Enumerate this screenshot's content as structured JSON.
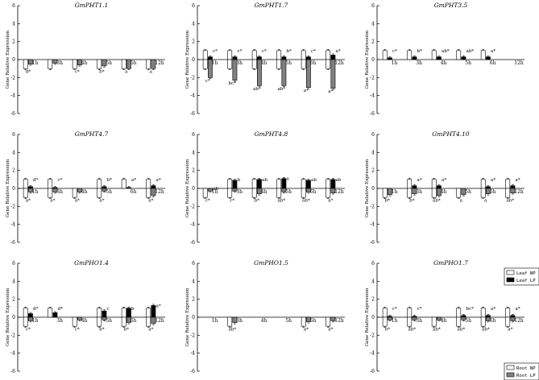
{
  "chart_data": {
    "type": "bar",
    "ylabel": "Gene Relative Expression",
    "ylim": [
      -6,
      6
    ],
    "yticks": [
      "6",
      "4",
      "2",
      "0",
      "-2",
      "-4",
      "-6"
    ],
    "categories": [
      "1h",
      "3h",
      "4h",
      "5h",
      "6h",
      "12h"
    ],
    "series_names": [
      "Leaf NP",
      "Leaf LP",
      "Root NP",
      "Root LP"
    ],
    "colors": {
      "leaf_np": "#ffffff",
      "leaf_lp": "#000000",
      "root_np": "#ffffff",
      "root_lp": "#808080"
    },
    "legend_upper": [
      "Leaf NP",
      "Leaf LP"
    ],
    "legend_lower": [
      "Root NP",
      "Root LP"
    ],
    "panels": [
      {
        "title": "GmPHT1.1",
        "leaf_np": [
          0,
          0,
          0,
          0,
          0,
          0
        ],
        "leaf_lp": [
          0,
          0,
          0,
          0,
          0,
          0
        ],
        "root_np": [
          -1.0,
          -1.0,
          -1.0,
          -1.0,
          -1.0,
          -1.0
        ],
        "root_lp": [
          -0.5,
          -0.4,
          -0.6,
          -0.7,
          -1.0,
          -1.0
        ],
        "sig_top": [
          "",
          "",
          "",
          "",
          "",
          ""
        ],
        "sig_bot": [
          "d*",
          "",
          "c*",
          "b*",
          "a",
          "a"
        ]
      },
      {
        "title": "GmPHT1.7",
        "leaf_np": [
          1.0,
          1.0,
          1.0,
          1.0,
          1.0,
          1.0
        ],
        "leaf_lp": [
          0.3,
          0.3,
          0.3,
          0.3,
          0.3,
          0.5
        ],
        "root_np": [
          -1.0,
          -1.0,
          -1.0,
          -1.0,
          -1.0,
          -1.0
        ],
        "root_lp": [
          -2.0,
          -2.3,
          -2.9,
          -2.9,
          -3.1,
          -3.2
        ],
        "sig_top": [
          "c*",
          "c*",
          "c*",
          "b*",
          "c*",
          "a*"
        ],
        "sig_bot": [
          "c*",
          "bc*",
          "ab*",
          "ab*",
          "a*",
          "a*"
        ]
      },
      {
        "title": "GmPHT3.5",
        "leaf_np": [
          1.0,
          1.0,
          1.0,
          1.0,
          1.0,
          0
        ],
        "leaf_lp": [
          0.2,
          0.3,
          0.3,
          0.3,
          0.3,
          0
        ],
        "root_np": [
          0,
          0,
          0,
          0,
          0,
          0
        ],
        "root_lp": [
          0,
          0,
          0,
          0,
          0,
          0
        ],
        "sig_top": [
          "c*",
          "b*",
          "ab*",
          "ab*",
          "a*",
          ""
        ],
        "sig_bot": [
          "",
          "",
          "",
          "",
          "",
          ""
        ]
      },
      {
        "title": "GmPHT4.7",
        "leaf_np": [
          1.0,
          1.0,
          0,
          1.0,
          1.0,
          1.0
        ],
        "leaf_lp": [
          0.2,
          0.1,
          0,
          0.2,
          0.1,
          0.3
        ],
        "root_np": [
          -1.0,
          -1.0,
          -1.0,
          -1.0,
          0,
          -1.0
        ],
        "root_lp": [
          -0.4,
          -0.4,
          -0.4,
          -0.3,
          0,
          -0.8
        ],
        "sig_top": [
          "d*",
          "c*",
          "",
          "b*",
          "a*",
          "a*"
        ],
        "sig_bot": [
          "a*",
          "a*",
          "a*",
          "a*",
          "",
          "a*"
        ]
      },
      {
        "title": "GmPHT4.8",
        "leaf_np": [
          0,
          1.0,
          1.0,
          1.0,
          1.0,
          1.0
        ],
        "leaf_lp": [
          0,
          0.9,
          1.0,
          1.1,
          0.9,
          1.0
        ],
        "root_np": [
          -1.0,
          -1.0,
          -1.0,
          -1.0,
          -1.0,
          -1.0
        ],
        "root_lp": [
          -0.3,
          -0.3,
          -0.6,
          -0.4,
          -0.4,
          -0.5
        ],
        "sig_top": [
          "ab",
          "b",
          "ab",
          "a",
          "ab",
          "ab"
        ],
        "sig_bot": [
          "c*",
          "c*",
          "b*",
          "ab*",
          "ab*",
          "a*"
        ]
      },
      {
        "title": "GmPHT4.10",
        "leaf_np": [
          0,
          1.0,
          1.0,
          0,
          1.0,
          1.0
        ],
        "leaf_lp": [
          0,
          0.3,
          0.3,
          0,
          0.2,
          0.3
        ],
        "root_np": [
          -1.0,
          -1.0,
          -1.0,
          -1.0,
          -1.0,
          -1.0
        ],
        "root_lp": [
          -0.7,
          -0.6,
          -0.8,
          -0.7,
          -0.6,
          -0.5
        ],
        "sig_top": [
          "",
          "a*",
          "a*",
          "",
          "a*",
          "a*"
        ],
        "sig_bot": [
          "b*",
          "b*",
          "ab*",
          "a",
          "a",
          "ab*"
        ]
      },
      {
        "title": "GmPHO1.4",
        "leaf_np": [
          1.0,
          1.0,
          0,
          1.0,
          1.0,
          1.0
        ],
        "leaf_lp": [
          0.4,
          0.5,
          0,
          0.7,
          1.0,
          1.3
        ],
        "root_np": [
          -1.0,
          0,
          -1.0,
          -1.0,
          -1.0,
          -1.0
        ],
        "root_lp": [
          -0.4,
          0,
          -0.3,
          -0.3,
          -0.6,
          -0.7
        ],
        "sig_top": [
          "d*",
          "d*",
          "",
          "c",
          "b",
          "a*"
        ],
        "sig_bot": [
          "c*",
          "",
          "c*",
          "b*",
          "b*",
          "a*"
        ]
      },
      {
        "title": "GmPHO1.5",
        "leaf_np": [
          0,
          0,
          0,
          0,
          0,
          0
        ],
        "leaf_lp": [
          0,
          0,
          0,
          0,
          0,
          0
        ],
        "root_np": [
          0,
          -1.0,
          0,
          0,
          -1.0,
          -1.0
        ],
        "root_lp": [
          0,
          -0.6,
          0,
          0,
          -0.5,
          -0.4
        ],
        "sig_top": [
          "",
          "",
          "",
          "",
          "",
          ""
        ],
        "sig_bot": [
          "",
          "ab*",
          "",
          "",
          "a*",
          "a*"
        ]
      },
      {
        "title": "GmPHO1.7",
        "leaf_np": [
          1.0,
          1.0,
          0,
          1.0,
          1.0,
          1.0
        ],
        "leaf_lp": [
          0.1,
          0.1,
          0,
          0.2,
          0.2,
          0.2
        ],
        "root_np": [
          -1.0,
          -1.0,
          -1.0,
          -1.0,
          -1.0,
          -1.0
        ],
        "root_lp": [
          -0.3,
          -0.3,
          -0.3,
          -0.3,
          -0.4,
          -0.4
        ],
        "sig_top": [
          "c*",
          "c*",
          "",
          "bc*",
          "a*",
          "a*"
        ],
        "sig_bot": [
          "b*",
          "ab*",
          "ab*",
          "ab*",
          "ab*",
          "a*"
        ]
      }
    ]
  }
}
